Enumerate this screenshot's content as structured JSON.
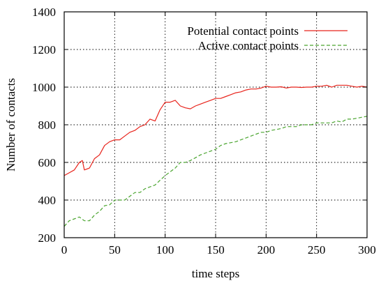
{
  "chart_data": {
    "type": "line",
    "title": "",
    "xlabel": "time steps",
    "ylabel": "Number of contacts",
    "xlim": [
      0,
      300
    ],
    "ylim": [
      200,
      1400
    ],
    "xticks": [
      0,
      50,
      100,
      150,
      200,
      250,
      300
    ],
    "yticks": [
      200,
      400,
      600,
      800,
      1000,
      1200,
      1400
    ],
    "xtick_labels": [
      "0",
      "50",
      "100",
      "150",
      "200",
      "250",
      "300"
    ],
    "ytick_labels": [
      "200",
      "400",
      "600",
      "800",
      "1000",
      "1200",
      "1400"
    ],
    "grid": true,
    "legend_position": "top-right",
    "series": [
      {
        "name": "Potential contact points",
        "color": "#e8231b",
        "dash": "solid",
        "x": [
          0,
          5,
          10,
          15,
          18,
          20,
          25,
          30,
          35,
          40,
          45,
          50,
          55,
          60,
          65,
          70,
          75,
          80,
          85,
          90,
          95,
          100,
          105,
          110,
          115,
          120,
          125,
          130,
          135,
          140,
          145,
          150,
          155,
          160,
          165,
          170,
          175,
          180,
          185,
          190,
          195,
          200,
          205,
          210,
          215,
          220,
          225,
          230,
          235,
          240,
          245,
          250,
          255,
          260,
          265,
          270,
          275,
          280,
          285,
          290,
          295,
          300
        ],
        "y": [
          530,
          545,
          560,
          600,
          610,
          560,
          570,
          620,
          640,
          690,
          710,
          720,
          720,
          740,
          760,
          770,
          790,
          800,
          830,
          820,
          880,
          920,
          920,
          930,
          900,
          890,
          885,
          900,
          910,
          920,
          930,
          940,
          940,
          950,
          960,
          970,
          975,
          985,
          990,
          990,
          995,
          1005,
          1000,
          1000,
          1002,
          995,
          1000,
          1000,
          998,
          1000,
          1000,
          1005,
          1005,
          1010,
          1000,
          1010,
          1010,
          1010,
          1005,
          1000,
          1005,
          1000
        ]
      },
      {
        "name": "Active contact points",
        "color": "#4aa52f",
        "dash": "dashed",
        "x": [
          0,
          5,
          10,
          15,
          20,
          25,
          30,
          35,
          40,
          45,
          50,
          55,
          60,
          65,
          70,
          75,
          80,
          85,
          90,
          95,
          100,
          105,
          110,
          115,
          120,
          125,
          130,
          135,
          140,
          145,
          150,
          155,
          160,
          165,
          170,
          175,
          180,
          185,
          190,
          195,
          200,
          205,
          210,
          215,
          220,
          225,
          230,
          235,
          240,
          245,
          250,
          255,
          260,
          265,
          270,
          275,
          280,
          285,
          290,
          295,
          300
        ],
        "y": [
          260,
          290,
          300,
          310,
          290,
          290,
          320,
          340,
          370,
          375,
          400,
          400,
          400,
          420,
          440,
          440,
          460,
          470,
          480,
          505,
          530,
          550,
          570,
          600,
          600,
          610,
          625,
          640,
          650,
          660,
          670,
          690,
          700,
          705,
          710,
          720,
          730,
          740,
          750,
          760,
          760,
          770,
          775,
          780,
          790,
          790,
          790,
          800,
          800,
          800,
          810,
          810,
          810,
          810,
          820,
          815,
          830,
          830,
          835,
          840,
          845
        ]
      }
    ]
  }
}
